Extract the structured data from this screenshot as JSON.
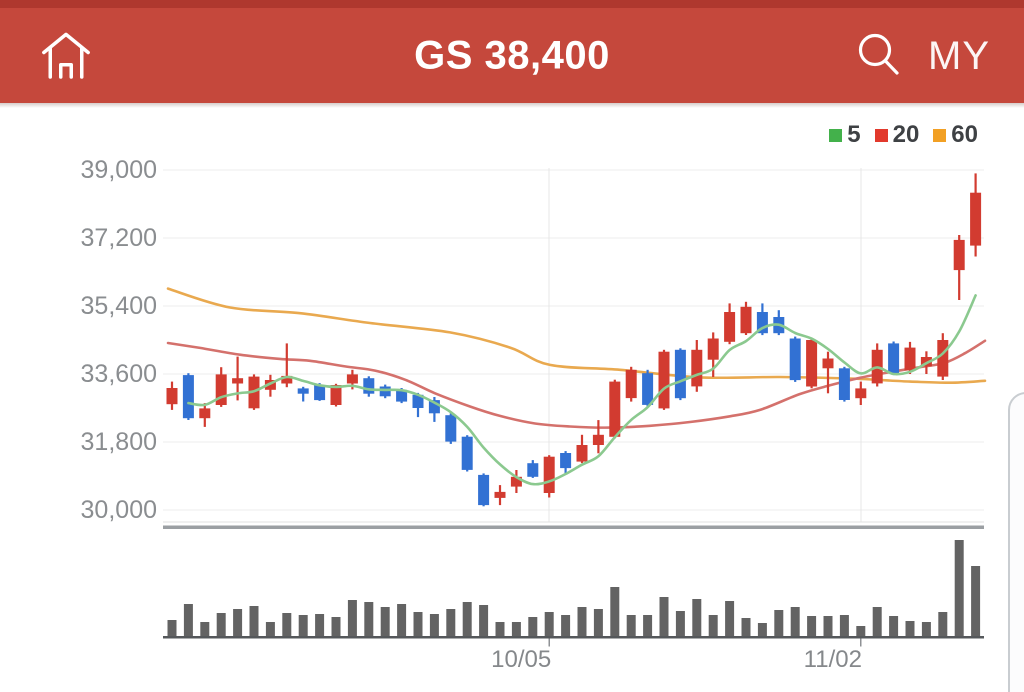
{
  "header": {
    "title": "GS 38,400",
    "my_label": "MY",
    "background_color": "#C5483C",
    "statusbar_color": "#AF382E"
  },
  "legend": {
    "items": [
      {
        "label": "5",
        "color": "#43B14B"
      },
      {
        "label": "20",
        "color": "#E2392C"
      },
      {
        "label": "60",
        "color": "#F2A024"
      }
    ]
  },
  "chart_data": {
    "type": "candlestick",
    "title": "GS daily price with 5/20/60 moving averages and volume",
    "up_color": "#D23B30",
    "down_color": "#3271D3",
    "grid_color": "#ECECEC",
    "y_axis": {
      "side": "left",
      "ticks": [
        {
          "label": "39,000",
          "value": 39000
        },
        {
          "label": "37,200",
          "value": 37200
        },
        {
          "label": "35,400",
          "value": 35400
        },
        {
          "label": "33,600",
          "value": 33600
        },
        {
          "label": "31,800",
          "value": 31800
        },
        {
          "label": "30,000",
          "value": 30000
        }
      ]
    },
    "x_axis": {
      "ticks": [
        {
          "label": "10/05",
          "index": 23
        },
        {
          "label": "11/02",
          "index": 42
        }
      ]
    },
    "candles_ohlc": [
      [
        32800,
        33400,
        32650,
        33230
      ],
      [
        33570,
        33620,
        32380,
        32430
      ],
      [
        32430,
        32830,
        32200,
        32690
      ],
      [
        32780,
        33780,
        32730,
        33590
      ],
      [
        33350,
        34060,
        32900,
        33490
      ],
      [
        32690,
        33590,
        32650,
        33530
      ],
      [
        33180,
        33580,
        33000,
        33440
      ],
      [
        33350,
        34410,
        33250,
        33550
      ],
      [
        33220,
        33260,
        32870,
        33080
      ],
      [
        33310,
        33360,
        32890,
        32910
      ],
      [
        32780,
        33340,
        32740,
        33310
      ],
      [
        33350,
        33710,
        33190,
        33590
      ],
      [
        33490,
        33540,
        33000,
        33080
      ],
      [
        33270,
        33320,
        32960,
        33010
      ],
      [
        33180,
        33230,
        32830,
        32870
      ],
      [
        33050,
        33100,
        32460,
        32700
      ],
      [
        32910,
        32990,
        32330,
        32560
      ],
      [
        32510,
        32560,
        31750,
        31810
      ],
      [
        31940,
        31980,
        31020,
        31060
      ],
      [
        30930,
        30970,
        30100,
        30130
      ],
      [
        30320,
        30660,
        30130,
        30480
      ],
      [
        30620,
        31060,
        30450,
        30880
      ],
      [
        31240,
        31320,
        30850,
        30880
      ],
      [
        30450,
        31450,
        30330,
        31410
      ],
      [
        31510,
        31560,
        30980,
        31110
      ],
      [
        31280,
        31990,
        31240,
        31720
      ],
      [
        31720,
        32380,
        31500,
        31990
      ],
      [
        31940,
        33450,
        31900,
        33400
      ],
      [
        32960,
        33790,
        32870,
        33710
      ],
      [
        33620,
        33710,
        32740,
        32780
      ],
      [
        32690,
        34240,
        32650,
        34190
      ],
      [
        34240,
        34280,
        32910,
        32960
      ],
      [
        33270,
        34500,
        33130,
        34240
      ],
      [
        33980,
        34700,
        33520,
        34540
      ],
      [
        34450,
        35470,
        34390,
        35240
      ],
      [
        34680,
        35510,
        34630,
        35380
      ],
      [
        35240,
        35470,
        34630,
        34680
      ],
      [
        35110,
        35290,
        34630,
        34680
      ],
      [
        34540,
        34590,
        33390,
        33440
      ],
      [
        33270,
        34550,
        33220,
        34500
      ],
      [
        33750,
        34190,
        33090,
        34010
      ],
      [
        33750,
        33790,
        32870,
        32910
      ],
      [
        32960,
        33400,
        32780,
        33220
      ],
      [
        33350,
        34410,
        33270,
        34240
      ],
      [
        34410,
        34460,
        33570,
        33620
      ],
      [
        33700,
        34450,
        33600,
        34300
      ],
      [
        33800,
        34200,
        33600,
        34050
      ],
      [
        33530,
        34680,
        33440,
        34500
      ],
      [
        36350,
        37280,
        35560,
        37150
      ],
      [
        37000,
        38910,
        36710,
        38400
      ]
    ],
    "moving_averages": {
      "ma5": {
        "period": 5,
        "color": "#8BC98F",
        "computed_from_closes": true
      },
      "ma20": {
        "period": 20,
        "color": "#D4716C",
        "points_x_price": [
          [
            168,
            34420
          ],
          [
            200,
            34290
          ],
          [
            240,
            34110
          ],
          [
            280,
            34000
          ],
          [
            310,
            33950
          ],
          [
            345,
            33800
          ],
          [
            375,
            33690
          ],
          [
            405,
            33450
          ],
          [
            435,
            33090
          ],
          [
            470,
            32740
          ],
          [
            500,
            32490
          ],
          [
            535,
            32290
          ],
          [
            570,
            32210
          ],
          [
            610,
            32180
          ],
          [
            650,
            32230
          ],
          [
            690,
            32330
          ],
          [
            730,
            32480
          ],
          [
            760,
            32650
          ],
          [
            800,
            33070
          ],
          [
            830,
            33300
          ],
          [
            860,
            33500
          ],
          [
            890,
            33650
          ],
          [
            920,
            33780
          ],
          [
            945,
            33900
          ],
          [
            965,
            34150
          ],
          [
            985,
            34480
          ]
        ]
      },
      "ma60": {
        "period": 60,
        "color": "#E9A94F",
        "points_x_price": [
          [
            168,
            35860
          ],
          [
            230,
            35360
          ],
          [
            300,
            35210
          ],
          [
            370,
            34950
          ],
          [
            450,
            34700
          ],
          [
            510,
            34300
          ],
          [
            550,
            33840
          ],
          [
            620,
            33710
          ],
          [
            700,
            33510
          ],
          [
            780,
            33520
          ],
          [
            850,
            33480
          ],
          [
            910,
            33400
          ],
          [
            950,
            33370
          ],
          [
            985,
            33420
          ]
        ]
      }
    },
    "volume": {
      "color": "#636363",
      "values_relative": [
        17,
        33,
        15,
        24,
        28,
        31,
        15,
        24,
        22,
        23,
        20,
        37,
        35,
        30,
        33,
        25,
        23,
        28,
        35,
        32,
        15,
        15,
        20,
        25,
        22,
        30,
        28,
        50,
        22,
        22,
        40,
        26,
        38,
        22,
        36,
        19,
        14,
        27,
        30,
        21,
        21,
        22,
        11,
        30,
        21,
        16,
        15,
        25,
        97,
        71
      ]
    }
  }
}
